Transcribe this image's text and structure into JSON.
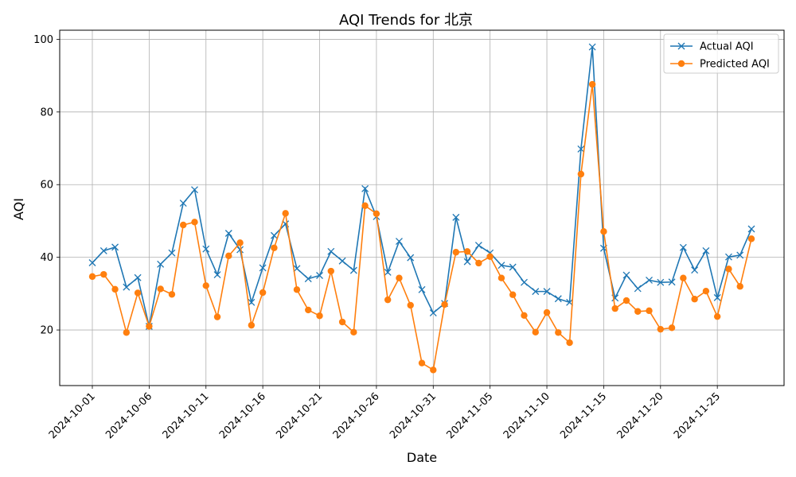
{
  "chart_data": {
    "type": "line",
    "title": "AQI Trends for 北京",
    "xlabel": "Date",
    "ylabel": "AQI",
    "x": [
      "2024-10-01",
      "2024-10-02",
      "2024-10-03",
      "2024-10-04",
      "2024-10-05",
      "2024-10-06",
      "2024-10-07",
      "2024-10-08",
      "2024-10-09",
      "2024-10-10",
      "2024-10-11",
      "2024-10-12",
      "2024-10-13",
      "2024-10-14",
      "2024-10-15",
      "2024-10-16",
      "2024-10-17",
      "2024-10-18",
      "2024-10-19",
      "2024-10-20",
      "2024-10-21",
      "2024-10-22",
      "2024-10-23",
      "2024-10-24",
      "2024-10-25",
      "2024-10-26",
      "2024-10-27",
      "2024-10-28",
      "2024-10-29",
      "2024-10-30",
      "2024-10-31",
      "2024-11-01",
      "2024-11-02",
      "2024-11-03",
      "2024-11-04",
      "2024-11-05",
      "2024-11-06",
      "2024-11-07",
      "2024-11-08",
      "2024-11-09",
      "2024-11-10",
      "2024-11-11",
      "2024-11-12",
      "2024-11-13",
      "2024-11-14",
      "2024-11-15",
      "2024-11-16",
      "2024-11-17",
      "2024-11-18",
      "2024-11-19",
      "2024-11-20",
      "2024-11-21",
      "2024-11-22",
      "2024-11-23",
      "2024-11-24",
      "2024-11-25",
      "2024-11-26",
      "2024-11-27",
      "2024-11-28"
    ],
    "xticks": [
      "2024-10-01",
      "2024-10-06",
      "2024-10-11",
      "2024-10-16",
      "2024-10-21",
      "2024-10-26",
      "2024-10-31",
      "2024-11-05",
      "2024-11-10",
      "2024-11-15",
      "2024-11-20",
      "2024-11-25"
    ],
    "yticks": [
      20,
      40,
      60,
      80,
      100
    ],
    "ylim": [
      4.7,
      102.5
    ],
    "grid": true,
    "legend_position": "top-right",
    "series": [
      {
        "name": "Actual AQI",
        "color": "#1f77b4",
        "marker": "x",
        "values": [
          38.5,
          41.8,
          42.8,
          31.8,
          34.4,
          21.0,
          38.1,
          41.2,
          54.9,
          58.6,
          42.3,
          35.2,
          46.6,
          42.1,
          27.6,
          37.1,
          46.0,
          49.2,
          36.9,
          34.1,
          35.0,
          41.6,
          39.0,
          36.4,
          58.9,
          51.2,
          35.9,
          44.4,
          39.9,
          31.1,
          24.7,
          27.3,
          51.0,
          38.8,
          43.3,
          41.2,
          37.8,
          37.3,
          33.1,
          30.6,
          30.6,
          28.6,
          27.6,
          69.8,
          97.9,
          42.5,
          28.8,
          35.1,
          31.4,
          33.7,
          33.1,
          33.2,
          42.7,
          36.5,
          41.8,
          28.9,
          40.1,
          40.6,
          47.8
        ]
      },
      {
        "name": "Predicted AQI",
        "color": "#ff7f0e",
        "marker": "o",
        "values": [
          34.7,
          35.3,
          31.2,
          19.3,
          30.2,
          21.0,
          31.3,
          29.8,
          48.9,
          49.7,
          32.2,
          23.6,
          40.4,
          44.0,
          21.3,
          30.3,
          42.6,
          52.1,
          31.1,
          25.5,
          23.9,
          36.2,
          22.2,
          19.4,
          54.2,
          52.0,
          28.3,
          34.3,
          26.8,
          10.9,
          9.0,
          27.0,
          41.4,
          41.6,
          38.4,
          40.2,
          34.3,
          29.7,
          24.0,
          19.4,
          24.8,
          19.3,
          16.5,
          62.9,
          87.6,
          47.1,
          25.9,
          28.1,
          25.1,
          25.3,
          20.2,
          20.6,
          34.3,
          28.5,
          30.7,
          23.7,
          36.8,
          32.0,
          45.1
        ]
      }
    ]
  }
}
